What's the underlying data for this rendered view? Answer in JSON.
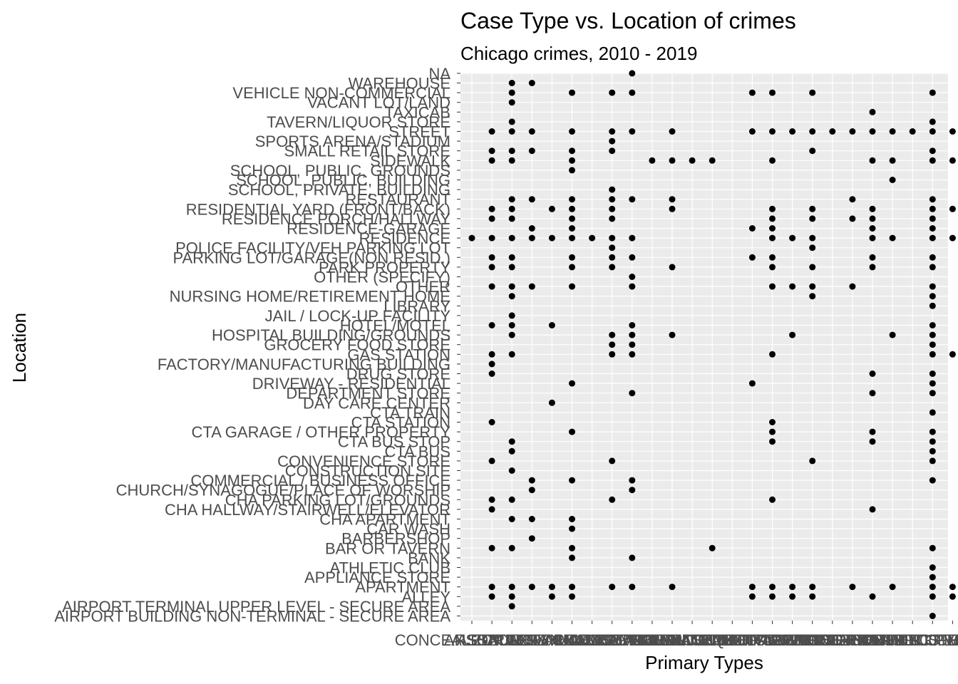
{
  "chart_data": {
    "type": "scatter",
    "title": "Case Type vs. Location of crimes",
    "subtitle": "Chicago crimes, 2010 - 2019",
    "xlabel": "Primary Types",
    "ylabel": "Location",
    "grid": true,
    "legend": "none",
    "colors": {
      "panel": "#ebebeb",
      "grid": "#ffffff",
      "point": "#000000",
      "tick_text": "#4d4d4d"
    },
    "x_categories": [
      "ARSON",
      "ASSAULT",
      "BATTERY",
      "BURGLARY",
      "CONCEALED CARRY LICENSE VIOLATION",
      "CRIM SEXUAL ASSAULT",
      "CRIMINAL DAMAGE",
      "CRIMINAL SEXUAL ASSAULT",
      "CRIMINAL TRESPASS",
      "DECEPTIVE PRACTICE",
      "GAMBLING",
      "HOMICIDE",
      "HUMAN TRAFFICKING",
      "INTERFERENCE WITH PUBLIC OFFICER",
      "INTIMIDATION",
      "KIDNAPPING",
      "LIQUOR LAW VIOLATION",
      "MOTOR VEHICLE THEFT",
      "NARCOTICS",
      "NON-CRIMINAL",
      "OBSCENITY",
      "OFFENSE INVOLVING CHILDREN",
      "OTHER NARCOTIC VIOLATION",
      "OTHER OFFENSE",
      "PROSTITUTION",
      "PUBLIC PEACE VIOLATION",
      "ROBBERY",
      "THEFT",
      "WEAPONS VIOLATION"
    ],
    "y_categories": [
      "AIRPORT BUILDING NON-TERMINAL - SECURE AREA",
      "AIRPORT TERMINAL UPPER LEVEL - SECURE AREA",
      "ALLEY",
      "APARTMENT",
      "APPLIANCE STORE",
      "ATHLETIC CLUB",
      "BANK",
      "BAR OR TAVERN",
      "BARBERSHOP",
      "CAR WASH",
      "CHA APARTMENT",
      "CHA HALLWAY/STAIRWELL/ELEVATOR",
      "CHA PARKING LOT/GROUNDS",
      "CHURCH/SYNAGOGUE/PLACE OF WORSHIP",
      "COMMERCIAL / BUSINESS OFFICE",
      "CONSTRUCTION SITE",
      "CONVENIENCE STORE",
      "CTA BUS",
      "CTA BUS STOP",
      "CTA GARAGE / OTHER PROPERTY",
      "CTA STATION",
      "CTA TRAIN",
      "DAY CARE CENTER",
      "DEPARTMENT STORE",
      "DRIVEWAY - RESIDENTIAL",
      "DRUG STORE",
      "FACTORY/MANUFACTURING BUILDING",
      "GAS STATION",
      "GROCERY FOOD STORE",
      "HOSPITAL BUILDING/GROUNDS",
      "HOTEL/MOTEL",
      "JAIL / LOCK-UP FACILITY",
      "LIBRARY",
      "NURSING HOME/RETIREMENT HOME",
      "OTHER",
      "OTHER (SPECIFY)",
      "PARK PROPERTY",
      "PARKING LOT/GARAGE(NON.RESID.)",
      "POLICE FACILITY/VEH PARKING LOT",
      "RESIDENCE",
      "RESIDENCE-GARAGE",
      "RESIDENCE PORCH/HALLWAY",
      "RESIDENTIAL YARD (FRONT/BACK)",
      "RESTAURANT",
      "SCHOOL, PRIVATE, BUILDING",
      "SCHOOL, PUBLIC, BUILDING",
      "SCHOOL, PUBLIC, GROUNDS",
      "SIDEWALK",
      "SMALL RETAIL STORE",
      "SPORTS ARENA/STADIUM",
      "STREET",
      "TAVERN/LIQUOR STORE",
      "TAXICAB",
      "VACANT LOT/LAND",
      "VEHICLE NON-COMMERCIAL",
      "WAREHOUSE",
      "NA"
    ],
    "points": [
      {
        "y": "NA",
        "x": [
          9
        ]
      },
      {
        "y": "WAREHOUSE",
        "x": [
          3,
          4
        ]
      },
      {
        "y": "VEHICLE NON-COMMERCIAL",
        "x": [
          3,
          6,
          8,
          9,
          15,
          16,
          18,
          24
        ]
      },
      {
        "y": "VACANT LOT/LAND",
        "x": [
          3
        ]
      },
      {
        "y": "TAXICAB",
        "x": [
          21
        ]
      },
      {
        "y": "TAVERN/LIQUOR STORE",
        "x": [
          3,
          24
        ]
      },
      {
        "y": "STREET",
        "x": [
          2,
          3,
          4,
          6,
          8,
          9,
          11,
          15,
          16,
          17,
          18,
          19,
          20,
          21,
          22,
          23,
          24,
          25
        ]
      },
      {
        "y": "SPORTS ARENA/STADIUM",
        "x": [
          8
        ]
      },
      {
        "y": "SMALL RETAIL STORE",
        "x": [
          2,
          3,
          4,
          6,
          8,
          18,
          24
        ]
      },
      {
        "y": "SIDEWALK",
        "x": [
          2,
          3,
          6,
          10,
          11,
          12,
          13,
          16,
          21,
          22,
          24,
          25
        ]
      },
      {
        "y": "SCHOOL, PUBLIC, GROUNDS",
        "x": [
          6
        ]
      },
      {
        "y": "SCHOOL, PUBLIC, BUILDING",
        "x": [
          22
        ]
      },
      {
        "y": "SCHOOL, PRIVATE, BUILDING",
        "x": [
          8
        ]
      },
      {
        "y": "RESTAURANT",
        "x": [
          3,
          4,
          6,
          8,
          9,
          11,
          20,
          24
        ]
      },
      {
        "y": "RESIDENTIAL YARD (FRONT/BACK)",
        "x": [
          2,
          3,
          5,
          6,
          8,
          11,
          16,
          18,
          21,
          24,
          25
        ]
      },
      {
        "y": "RESIDENCE PORCH/HALLWAY",
        "x": [
          2,
          3,
          6,
          8,
          16,
          18,
          20,
          21,
          24
        ]
      },
      {
        "y": "RESIDENCE-GARAGE",
        "x": [
          4,
          6,
          15,
          16,
          21,
          24
        ]
      },
      {
        "y": "RESIDENCE",
        "x": [
          1,
          2,
          3,
          4,
          5,
          6,
          7,
          8,
          9,
          16,
          17,
          18,
          21,
          22,
          24,
          25
        ]
      },
      {
        "y": "POLICE FACILITY/VEH PARKING LOT",
        "x": [
          8,
          18
        ]
      },
      {
        "y": "PARKING LOT/GARAGE(NON.RESID.)",
        "x": [
          2,
          3,
          6,
          8,
          9,
          15,
          16,
          21,
          24
        ]
      },
      {
        "y": "PARK PROPERTY",
        "x": [
          2,
          3,
          6,
          8,
          11,
          16,
          18,
          21,
          24
        ]
      },
      {
        "y": "OTHER (SPECIFY)",
        "x": [
          9
        ]
      },
      {
        "y": "OTHER",
        "x": [
          2,
          3,
          4,
          6,
          9,
          16,
          17,
          18,
          20,
          24
        ]
      },
      {
        "y": "NURSING HOME/RETIREMENT HOME",
        "x": [
          3,
          18,
          24
        ]
      },
      {
        "y": "LIBRARY",
        "x": [
          24
        ]
      },
      {
        "y": "JAIL / LOCK-UP FACILITY",
        "x": [
          3
        ]
      },
      {
        "y": "HOTEL/MOTEL",
        "x": [
          2,
          3,
          5,
          9,
          24
        ]
      },
      {
        "y": "HOSPITAL BUILDING/GROUNDS",
        "x": [
          3,
          8,
          9,
          11,
          17,
          22,
          24
        ]
      },
      {
        "y": "GROCERY FOOD STORE",
        "x": [
          8,
          9,
          24
        ]
      },
      {
        "y": "GAS STATION",
        "x": [
          2,
          3,
          8,
          9,
          16,
          24,
          25
        ]
      },
      {
        "y": "FACTORY/MANUFACTURING BUILDING",
        "x": [
          2
        ]
      },
      {
        "y": "DRUG STORE",
        "x": [
          2,
          21,
          24
        ]
      },
      {
        "y": "DRIVEWAY - RESIDENTIAL",
        "x": [
          6,
          15,
          24
        ]
      },
      {
        "y": "DEPARTMENT STORE",
        "x": [
          9,
          21,
          24
        ]
      },
      {
        "y": "DAY CARE CENTER",
        "x": [
          5
        ]
      },
      {
        "y": "CTA TRAIN",
        "x": [
          24
        ]
      },
      {
        "y": "CTA STATION",
        "x": [
          2,
          16
        ]
      },
      {
        "y": "CTA GARAGE / OTHER PROPERTY",
        "x": [
          6,
          16,
          21,
          24
        ]
      },
      {
        "y": "CTA BUS STOP",
        "x": [
          3,
          16,
          21,
          24
        ]
      },
      {
        "y": "CTA BUS",
        "x": [
          3,
          24
        ]
      },
      {
        "y": "CONVENIENCE STORE",
        "x": [
          2,
          8,
          18,
          24
        ]
      },
      {
        "y": "CONSTRUCTION SITE",
        "x": [
          3
        ]
      },
      {
        "y": "COMMERCIAL / BUSINESS OFFICE",
        "x": [
          4,
          6,
          9,
          24
        ]
      },
      {
        "y": "CHURCH/SYNAGOGUE/PLACE OF WORSHIP",
        "x": [
          4,
          9
        ]
      },
      {
        "y": "CHA PARKING LOT/GROUNDS",
        "x": [
          2,
          3,
          8,
          16
        ]
      },
      {
        "y": "CHA HALLWAY/STAIRWELL/ELEVATOR",
        "x": [
          2,
          21
        ]
      },
      {
        "y": "CHA APARTMENT",
        "x": [
          3,
          4,
          6
        ]
      },
      {
        "y": "CAR WASH",
        "x": [
          6
        ]
      },
      {
        "y": "BARBERSHOP",
        "x": [
          4
        ]
      },
      {
        "y": "BAR OR TAVERN",
        "x": [
          2,
          3,
          6,
          13,
          24
        ]
      },
      {
        "y": "BANK",
        "x": [
          6,
          9
        ]
      },
      {
        "y": "ATHLETIC CLUB",
        "x": [
          24
        ]
      },
      {
        "y": "APPLIANCE STORE",
        "x": [
          24
        ]
      },
      {
        "y": "APARTMENT",
        "x": [
          2,
          3,
          4,
          5,
          6,
          8,
          9,
          11,
          15,
          16,
          17,
          18,
          20,
          22,
          24,
          25
        ]
      },
      {
        "y": "ALLEY",
        "x": [
          2,
          3,
          5,
          6,
          15,
          16,
          17,
          18,
          21,
          24,
          25
        ]
      },
      {
        "y": "AIRPORT TERMINAL UPPER LEVEL - SECURE AREA",
        "x": [
          3
        ]
      },
      {
        "y": "AIRPORT BUILDING NON-TERMINAL - SECURE AREA",
        "x": [
          24
        ]
      }
    ]
  }
}
